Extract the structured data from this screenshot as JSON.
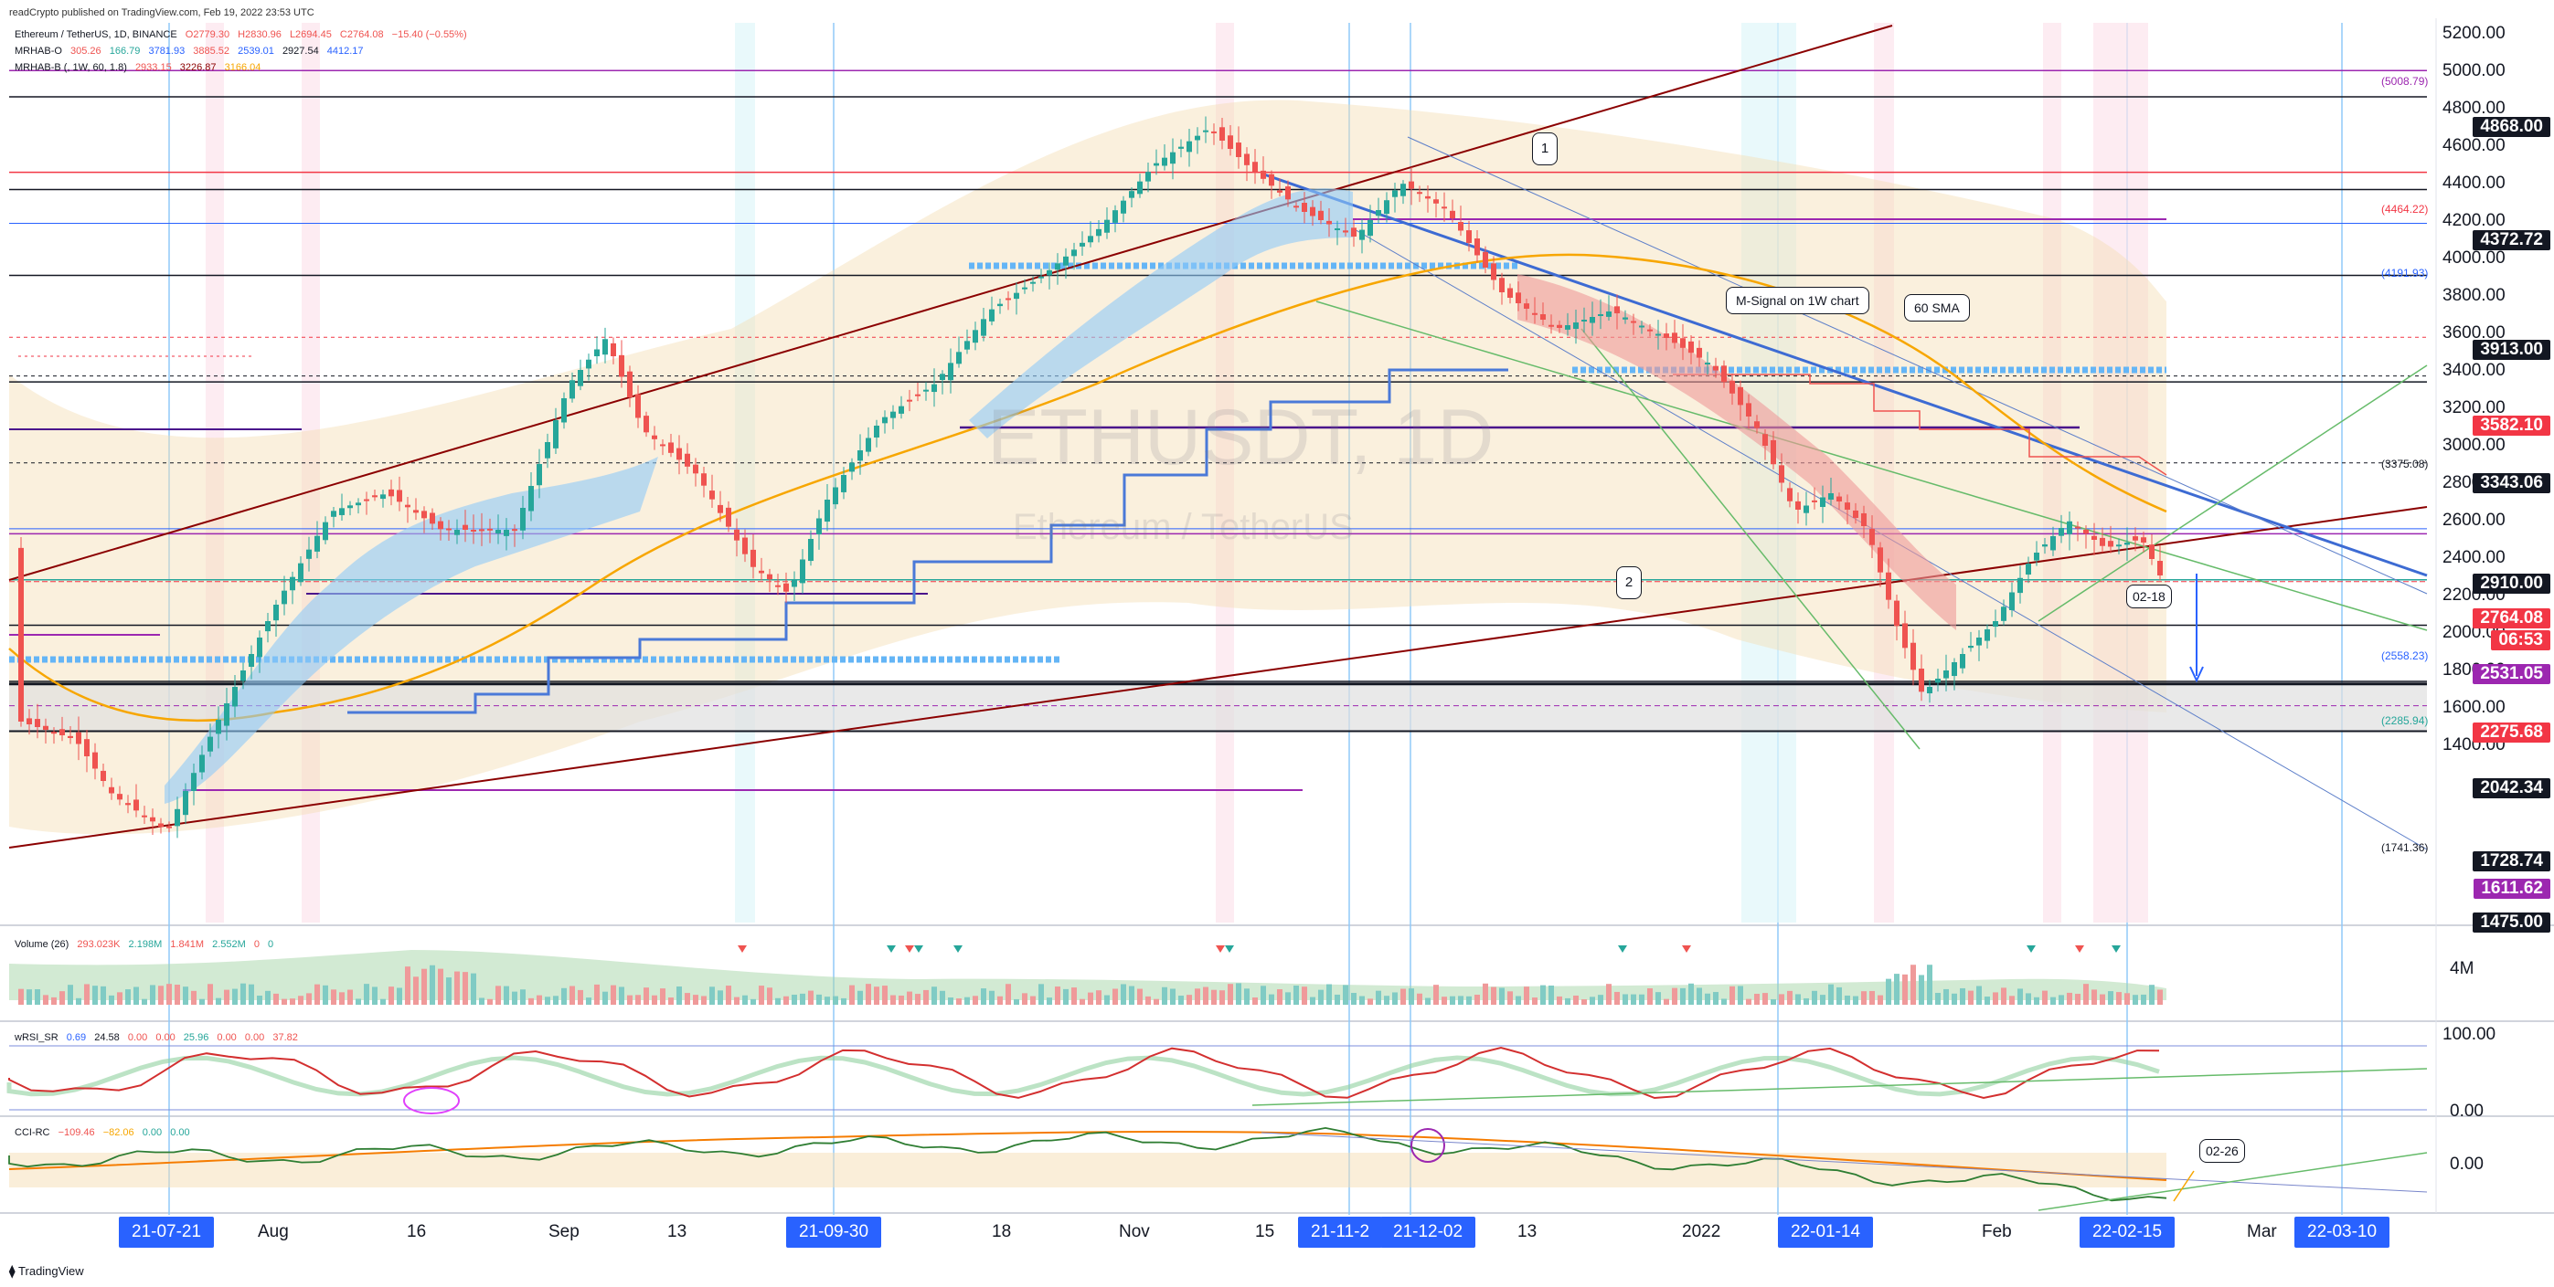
{
  "publisher": "readCrypto published on TradingView.com, Feb 19, 2022 23:53 UTC",
  "watermark": {
    "symbol": "ETHUSDT, 1D",
    "name": "Ethereum / TetherUS"
  },
  "legend": {
    "main": {
      "name": "Ethereum / TetherUS, 1D, BINANCE",
      "o": "O2779.30",
      "h": "H2830.96",
      "l": "L2694.45",
      "c": "C2764.08",
      "chg": "−15.40 (−0.55%)"
    },
    "ind1": {
      "name": "MRHAB-O",
      "v1": "305.26",
      "v2": "166.79",
      "v3": "3781.93",
      "v4": "3885.52",
      "v5": "2539.01",
      "v6": "2927.54",
      "v7": "4412.17"
    },
    "ind2": {
      "name": "MRHAB-B (, 1W, 60, 1.8)",
      "v1": "2933.15",
      "v2": "3226.87",
      "v3": "3166.04"
    }
  },
  "price_axis": [
    "5200.00",
    "5000.00",
    "4800.00",
    "4600.00",
    "4400.00",
    "4200.00",
    "4000.00",
    "3800.00",
    "3600.00",
    "3400.00",
    "3200.00",
    "3000.00",
    "2800.00",
    "2600.00",
    "2400.00",
    "2200.00",
    "2000.00",
    "1800.00",
    "1600.00",
    "1400.00"
  ],
  "price_labels": [
    {
      "text": "4868.00",
      "bg": "#131722"
    },
    {
      "text": "4372.72",
      "bg": "#131722"
    },
    {
      "text": "3913.00",
      "bg": "#131722"
    },
    {
      "text": "3582.10",
      "bg": "#f23645"
    },
    {
      "text": "3343.06",
      "bg": "#131722"
    },
    {
      "text": "2910.00",
      "bg": "#131722"
    },
    {
      "text": "2764.08",
      "bg": "#f23645"
    },
    {
      "text": "06:53",
      "bg": "#f23645"
    },
    {
      "text": "2531.05",
      "bg": "#9c27b0"
    },
    {
      "text": "2275.68",
      "bg": "#f23645"
    },
    {
      "text": "2042.34",
      "bg": "#131722"
    },
    {
      "text": "1728.74",
      "bg": "#131722"
    },
    {
      "text": "1611.62",
      "bg": "#9c27b0"
    },
    {
      "text": "1475.00",
      "bg": "#131722"
    }
  ],
  "level_tags": [
    "(5008.79)",
    "(4464.22)",
    "(4191.93)",
    "(3375.08)",
    "(2558.23)",
    "(2285.94)",
    "(1741.36)"
  ],
  "annotations": {
    "msignal": "M-Signal on 1W chart",
    "sma": "60 SMA",
    "n1": "1",
    "n2": "2",
    "date_mark": "02-18",
    "date_mark2": "02-26"
  },
  "volume": {
    "title": "Volume (26)",
    "v1": "293.023K",
    "v2": "2.198M",
    "v3": "1.841M",
    "v4": "2.552M",
    "v5": "0",
    "v6": "0",
    "axis": "4M"
  },
  "rsi": {
    "title": "wRSI_SR",
    "v1": "0.69",
    "v2": "24.58",
    "v3": "0.00",
    "v4": "0.00",
    "v5": "25.96",
    "v6": "0.00",
    "v7": "0.00",
    "v8": "37.82",
    "axis_top": "100.00",
    "axis_bottom": "0.00"
  },
  "cci": {
    "title": "CCI-RC",
    "v1": "−109.46",
    "v2": "−82.06",
    "v3": "0.00",
    "v4": "0.00",
    "axis": "0.00"
  },
  "time_axis": {
    "pills": [
      "21-07-21",
      "21-09-30",
      "21-11-2",
      "21-12-02",
      "22-01-14",
      "22-02-15",
      "22-03-10"
    ],
    "labels": [
      "Aug",
      "16",
      "Sep",
      "13",
      "18",
      "Nov",
      "15",
      "13",
      "2022",
      "Feb",
      "Mar"
    ]
  },
  "footer": "TradingView",
  "colors": {
    "up": "#26a69a",
    "down": "#ef5350",
    "blue": "#2962ff",
    "orange": "#f7a600",
    "maroon": "#8b0000",
    "purple": "#9c27b0",
    "green": "#4caf50"
  }
}
